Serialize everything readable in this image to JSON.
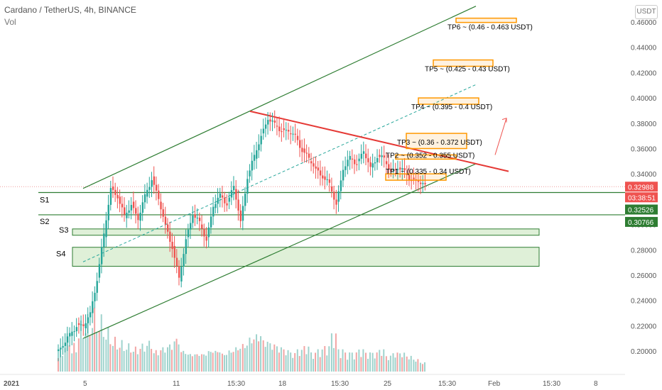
{
  "header": {
    "symbol_line": "Cardano / TetherUS, 4h, BINANCE",
    "volume_label": "Vol",
    "currency_button": "USDT"
  },
  "price_axis": {
    "ticks": [
      "0.46000",
      "0.44000",
      "0.42000",
      "0.40000",
      "0.38000",
      "0.36000",
      "0.34000",
      "0.32000",
      "0.30000",
      "0.28000",
      "0.26000",
      "0.24000",
      "0.22000",
      "0.20000"
    ],
    "current_price": "0.32988",
    "countdown": "03:38:51",
    "badge_s1": "0.32526",
    "badge_s2": "0.30766"
  },
  "time_axis": {
    "ticks": [
      "2021",
      "5",
      "11",
      "15:30",
      "18",
      "15:30",
      "25",
      "15:30",
      "Feb",
      "15:30",
      "8"
    ]
  },
  "levels": {
    "support_labels": [
      "S1",
      "S2",
      "S3",
      "S4"
    ],
    "targets": [
      "TP1 ~ (0.335 - 0.34 USDT)",
      "TP2 ~ (0.352 - 0.355 USDT)",
      "TP3 ~ (0.36 - 0.372 USDT)",
      "TP4 ~ (0.395 - 0.4 USDT)",
      "TP5 ~ (0.425 - 0.43 USDT)",
      "TP6 ~ (0.46 - 0.463 USDT)"
    ]
  },
  "colors": {
    "up": "#26a69a",
    "down": "#ef5350",
    "channel": "#2e7d32",
    "resistance": "#e53935",
    "target_box": "#ff9800",
    "zone_fill": "#dff0d8",
    "badge_green": "#2e7d32",
    "badge_red": "#ef5350"
  },
  "chart_data": {
    "type": "candlestick",
    "y_scale": "price (USDT)",
    "ylim": [
      0.188,
      0.468
    ],
    "support_levels": [
      0.32526,
      0.30766
    ],
    "support_zones": [
      [
        0.2915,
        0.2965
      ],
      [
        0.267,
        0.282
      ]
    ],
    "target_zones": [
      [
        0.335,
        0.34
      ],
      [
        0.352,
        0.355
      ],
      [
        0.36,
        0.372
      ],
      [
        0.395,
        0.4
      ],
      [
        0.425,
        0.43
      ],
      [
        0.46,
        0.463
      ]
    ],
    "last_price": 0.32988,
    "price_path": [
      0.204,
      0.212,
      0.222,
      0.218,
      0.23,
      0.258,
      0.29,
      0.33,
      0.322,
      0.305,
      0.318,
      0.303,
      0.322,
      0.338,
      0.318,
      0.3,
      0.283,
      0.255,
      0.29,
      0.308,
      0.3,
      0.29,
      0.313,
      0.323,
      0.318,
      0.328,
      0.303,
      0.338,
      0.352,
      0.372,
      0.383,
      0.378,
      0.376,
      0.372,
      0.37,
      0.36,
      0.35,
      0.345,
      0.338,
      0.33,
      0.318,
      0.343,
      0.352,
      0.35,
      0.356,
      0.345,
      0.355,
      0.35,
      0.343,
      0.345,
      0.34,
      0.337,
      0.333,
      0.33
    ],
    "volume_level": [
      0.35,
      0.6,
      0.45,
      0.8,
      0.9,
      1.0,
      0.9,
      0.7,
      0.55,
      0.5,
      0.45,
      0.4,
      0.45,
      0.5,
      0.35,
      0.4,
      0.45,
      0.55,
      0.35,
      0.3,
      0.3,
      0.3,
      0.35,
      0.35,
      0.3,
      0.35,
      0.4,
      0.45,
      0.55,
      0.6,
      0.5,
      0.45,
      0.4,
      0.35,
      0.3,
      0.35,
      0.4,
      0.3,
      0.35,
      0.4,
      0.6,
      0.35,
      0.3,
      0.3,
      0.35,
      0.3,
      0.3,
      0.35,
      0.25,
      0.3,
      0.3,
      0.25,
      0.2,
      0.15
    ]
  }
}
